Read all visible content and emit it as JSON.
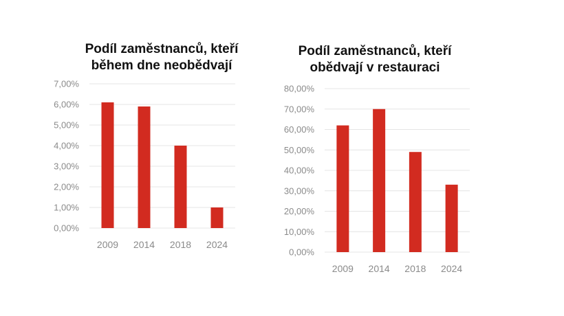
{
  "chart_data": [
    {
      "type": "bar",
      "title_lines": [
        "Podíl zaměstnanců, kteří",
        "během dne neobědvají"
      ],
      "categories": [
        "2009",
        "2014",
        "2018",
        "2024"
      ],
      "values": [
        6.1,
        5.9,
        4.0,
        1.0
      ],
      "ylim": [
        0,
        7
      ],
      "yticks": [
        0,
        1,
        2,
        3,
        4,
        5,
        6,
        7
      ],
      "ytick_labels": [
        "0,00%",
        "1,00%",
        "2,00%",
        "3,00%",
        "4,00%",
        "5,00%",
        "6,00%",
        "7,00%"
      ],
      "xlabel": "",
      "ylabel": "",
      "grid": true,
      "bar_color": "#d22b20"
    },
    {
      "type": "bar",
      "title_lines": [
        "Podíl zaměstnanců, kteří",
        "obědvají v restauraci"
      ],
      "categories": [
        "2009",
        "2014",
        "2018",
        "2024"
      ],
      "values": [
        62,
        70,
        49,
        33
      ],
      "ylim": [
        0,
        80
      ],
      "yticks": [
        0,
        10,
        20,
        30,
        40,
        50,
        60,
        70,
        80
      ],
      "ytick_labels": [
        "0,00%",
        "10,00%",
        "20,00%",
        "30,00%",
        "40,00%",
        "50,00%",
        "60,00%",
        "70,00%",
        "80,00%"
      ],
      "xlabel": "",
      "ylabel": "",
      "grid": true,
      "bar_color": "#d22b20"
    }
  ]
}
